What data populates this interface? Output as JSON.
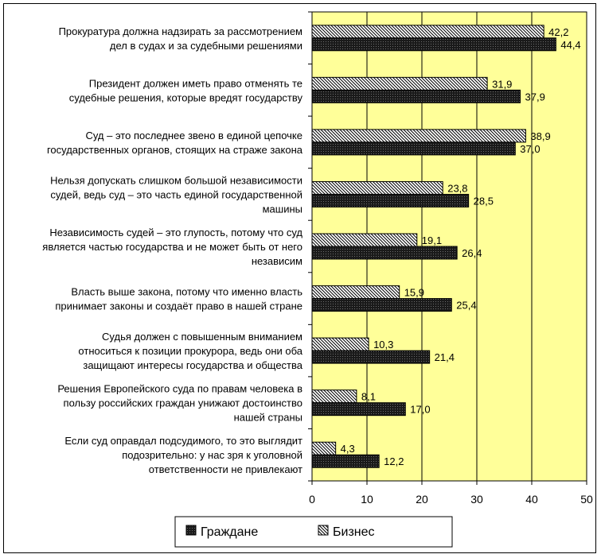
{
  "chart_data": {
    "type": "bar",
    "orientation": "horizontal",
    "xlim": [
      0,
      50
    ],
    "x_ticks": [
      0,
      10,
      20,
      30,
      40,
      50
    ],
    "x_tick_labels": [
      "0",
      "10",
      "20",
      "30",
      "40",
      "50"
    ],
    "grid": "vertical",
    "legend_position": "bottom",
    "plot_background": "#ffff99",
    "categories": [
      [
        "Прокуратура должна надзирать за рассмотрением",
        "дел в судах и за судебными решениями"
      ],
      [
        "Президент должен иметь право отменять те",
        "судебные решения, которые вредят государству"
      ],
      [
        "Суд – это последнее звено в единой цепочке",
        "государственных органов, стоящих на страже закона"
      ],
      [
        "Нельзя допускать слишком большой независимости",
        "судей, ведь суд – это часть единой государственной",
        "машины"
      ],
      [
        "Независимость судей – это глупость, потому что суд",
        "является частью государства и не может быть от него",
        "независим"
      ],
      [
        "Власть выше закона, потому что именно власть",
        "принимает законы и создаёт право в нашей стране"
      ],
      [
        "Судья должен с повышенным вниманием",
        "относиться к позиции прокурора, ведь они оба",
        "защищают интересы государства и общества"
      ],
      [
        "Решения Европейского суда по правам человека в",
        "пользу российских граждан унижают достоинство",
        "нашей страны"
      ],
      [
        "Если суд оправдал подсудимого, то это выглядит",
        "подозрительно: у нас зря к уголовной",
        "ответственности не привлекают"
      ]
    ],
    "series": [
      {
        "name": "Бизнес",
        "pattern": "hatch",
        "values": [
          42.2,
          31.9,
          38.9,
          23.8,
          19.1,
          15.9,
          10.3,
          8.1,
          4.3
        ],
        "labels": [
          "42,2",
          "31,9",
          "38,9",
          "23,8",
          "19,1",
          "15,9",
          "10,3",
          "8,1",
          "4,3"
        ]
      },
      {
        "name": "Граждане",
        "pattern": "dark-dots",
        "values": [
          44.4,
          37.9,
          37.0,
          28.5,
          26.4,
          25.4,
          21.4,
          17.0,
          12.2
        ],
        "labels": [
          "44,4",
          "37,9",
          "37,0",
          "28,5",
          "26,4",
          "25,4",
          "21,4",
          "17,0",
          "12,2"
        ]
      }
    ],
    "legend": [
      {
        "name": "Граждане",
        "pattern": "dark-dots"
      },
      {
        "name": "Бизнес",
        "pattern": "hatch"
      }
    ]
  }
}
